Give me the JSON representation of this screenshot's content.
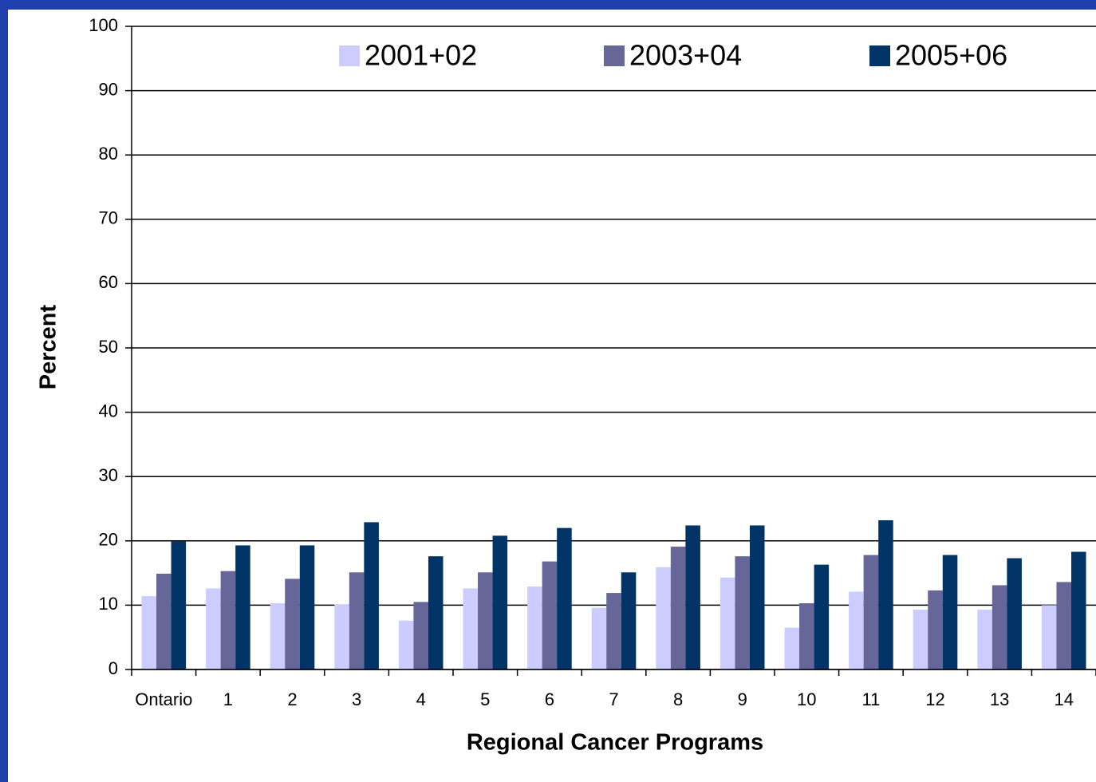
{
  "chart_data": {
    "type": "bar",
    "x_label": "Regional Cancer Programs",
    "y_label": "Percent",
    "categories": [
      "Ontario",
      "1",
      "2",
      "3",
      "4",
      "5",
      "6",
      "7",
      "8",
      "9",
      "10",
      "11",
      "12",
      "13",
      "14"
    ],
    "series": [
      {
        "name": "2001+02",
        "color": "#ccccff",
        "values": [
          11.4,
          12.6,
          10.3,
          10.1,
          7.6,
          12.6,
          12.9,
          9.6,
          15.9,
          14.3,
          6.5,
          12.1,
          9.3,
          9.3,
          10.0
        ]
      },
      {
        "name": "2003+04",
        "color": "#666699",
        "values": [
          14.9,
          15.3,
          14.1,
          15.1,
          10.5,
          15.1,
          16.8,
          11.9,
          19.1,
          17.6,
          10.3,
          17.8,
          12.3,
          13.1,
          13.6
        ]
      },
      {
        "name": "2005+06",
        "color": "#003366",
        "values": [
          19.9,
          19.3,
          19.3,
          22.9,
          17.6,
          20.8,
          22.0,
          15.1,
          22.4,
          22.4,
          16.3,
          23.2,
          17.8,
          17.3,
          18.3
        ]
      }
    ],
    "ylim": [
      0,
      100
    ],
    "yticks": [
      0,
      10,
      20,
      30,
      40,
      50,
      60,
      70,
      80,
      90,
      100
    ],
    "grid": true,
    "legend": "top"
  }
}
